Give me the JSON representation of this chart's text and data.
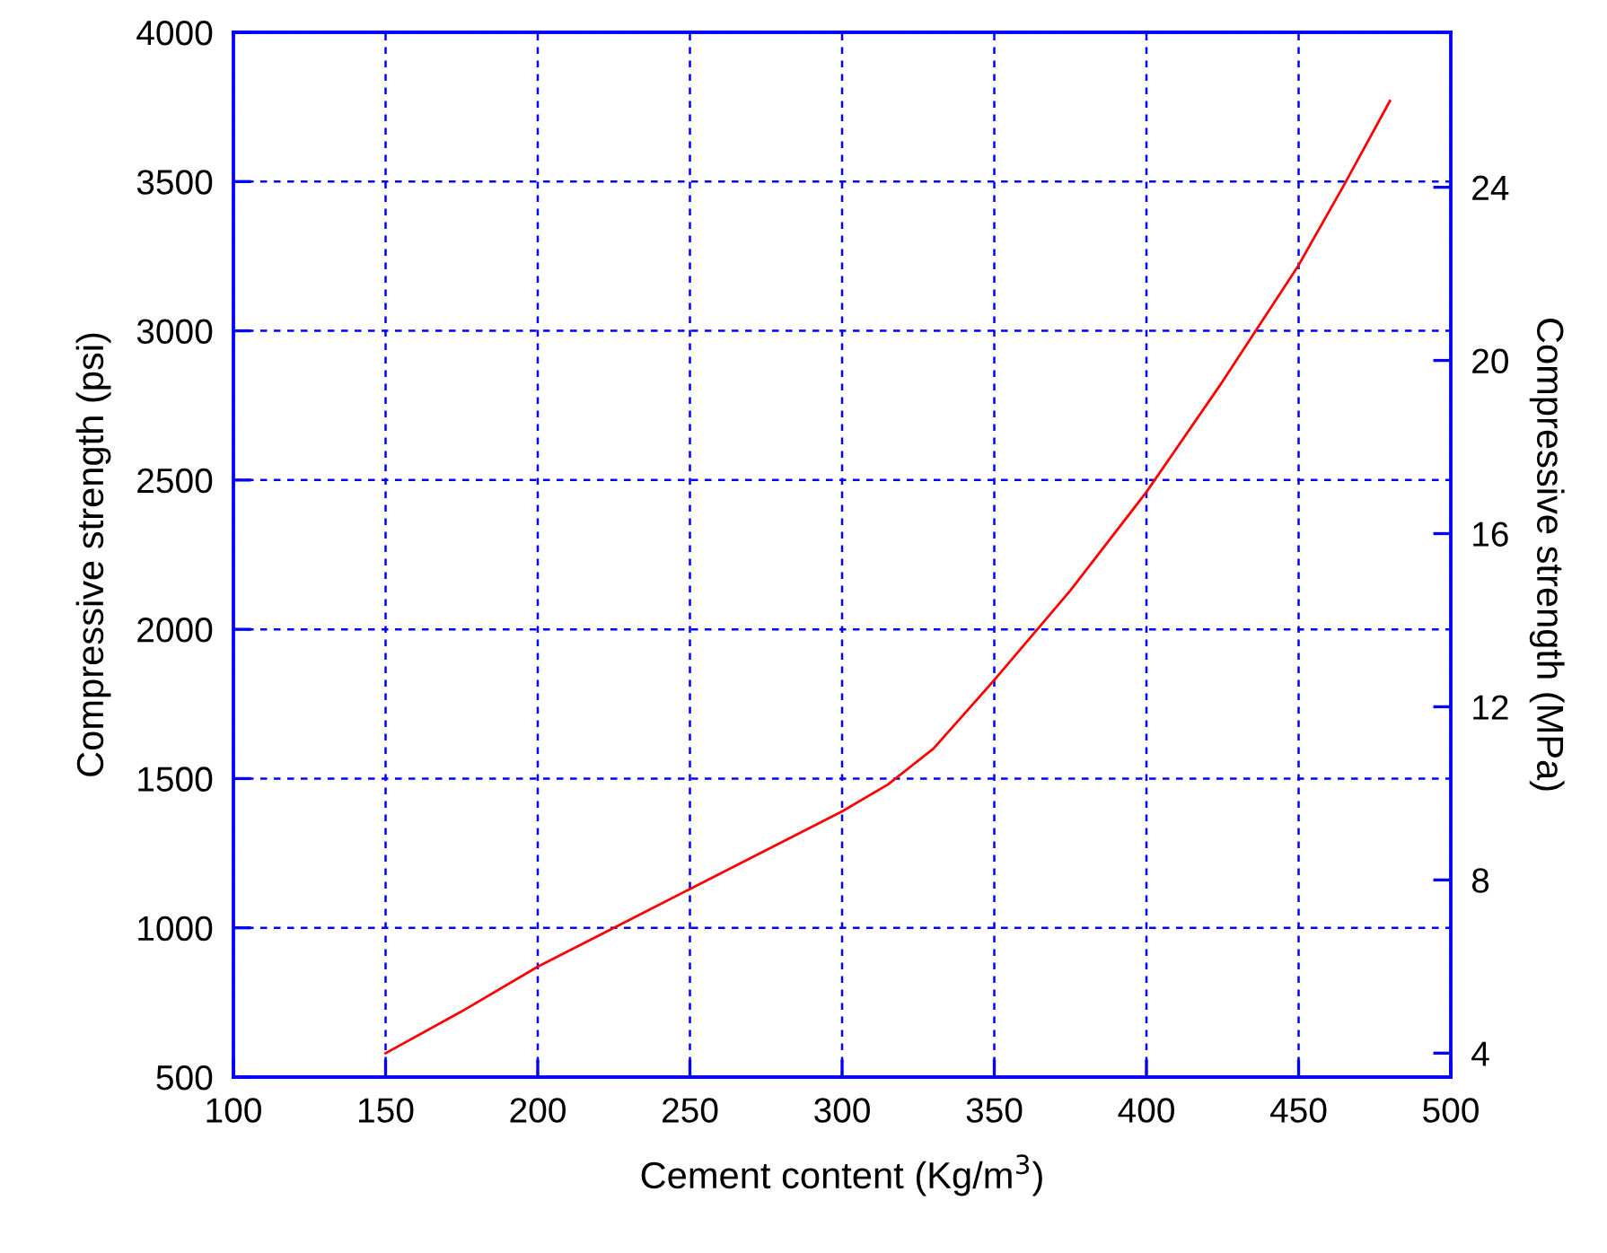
{
  "chart_data": {
    "type": "line",
    "xlabel": "Cement content (Kg/m$^{3}$)",
    "ylabel": "Compressive strength (psi)",
    "y2label": "Compressive strength (MPa)",
    "x": [
      150,
      175,
      200,
      225,
      250,
      275,
      300,
      315,
      330,
      350,
      375,
      400,
      425,
      450,
      465,
      480
    ],
    "series": [
      {
        "color": "#ff0000",
        "values": [
          580,
          720,
          870,
          1000,
          1130,
          1260,
          1390,
          1480,
          1600,
          1830,
          2130,
          2460,
          2830,
          3220,
          3490,
          3770
        ]
      }
    ],
    "xlim": [
      100,
      500
    ],
    "xticks": [
      100,
      150,
      200,
      250,
      300,
      350,
      400,
      450,
      500
    ],
    "ylim": [
      500,
      4000
    ],
    "yticks": [
      500,
      1000,
      1500,
      2000,
      2500,
      3000,
      3500,
      4000
    ],
    "y2lim": [
      3.447,
      27.579
    ],
    "y2ticks": [
      4,
      8,
      12,
      16,
      20,
      24
    ],
    "grid": true,
    "marker": "none",
    "line_style": "solid"
  }
}
